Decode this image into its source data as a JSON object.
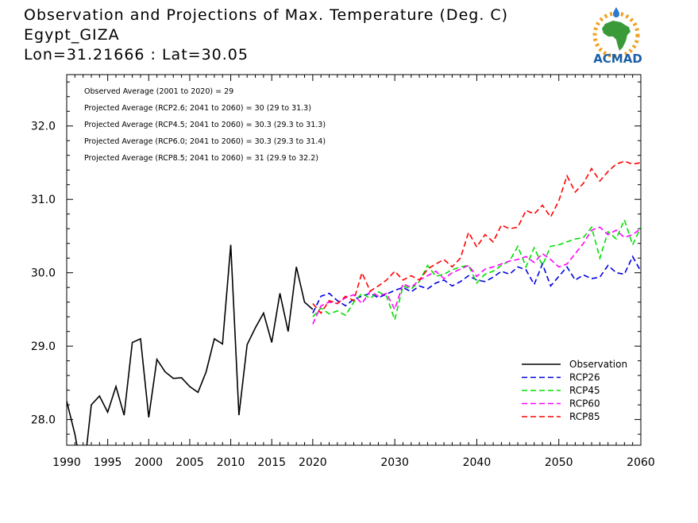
{
  "header": {
    "title": "Observation and Projections of Max. Temperature (Deg. C)",
    "location": "Egypt_GIZA",
    "coords": "Lon=31.21666 : Lat=30.05"
  },
  "logo": {
    "text": "ACMAD",
    "colors": {
      "text": "#1a5fa8",
      "africa": "#3a9a3a",
      "sun": "#f0a020",
      "drop": "#2a7ad0"
    }
  },
  "stats": [
    "Observed Average (2001 to 2020) = 29",
    "Projected Average (RCP2.6; 2041 to 2060) = 30 (29 to 31.3)",
    "Projected Average (RCP4.5; 2041 to 2060) = 30.3 (29.3 to 31.3)",
    "Projected Average (RCP6.0; 2041 to 2060) = 30.3 (29.3 to 31.4)",
    "Projected Average (RCP8.5; 2041 to 2060) = 31 (29.9 to 32.2)"
  ],
  "chart_data": {
    "type": "line",
    "xlim": [
      1990,
      2060
    ],
    "ylim": [
      27.65,
      32.7
    ],
    "xticks": [
      1990,
      1995,
      2000,
      2005,
      2010,
      2015,
      2020,
      2030,
      2040,
      2050,
      2060
    ],
    "yticks": [
      28.0,
      29.0,
      30.0,
      31.0,
      32.0
    ],
    "ytick_labels": [
      "28.0",
      "29.0",
      "30.0",
      "31.0",
      "32.0"
    ],
    "grid": false,
    "legend_position": "bottom-right",
    "series": [
      {
        "name": "Observation",
        "color": "#000000",
        "dashed": false,
        "x": [
          1990,
          1991,
          1992,
          1993,
          1994,
          1995,
          1996,
          1997,
          1998,
          1999,
          2000,
          2001,
          2002,
          2003,
          2004,
          2005,
          2006,
          2007,
          2008,
          2009,
          2010,
          2011,
          2012,
          2013,
          2014,
          2015,
          2016,
          2017,
          2018,
          2019,
          2020
        ],
        "y": [
          28.25,
          27.8,
          27.2,
          28.2,
          28.32,
          28.1,
          28.45,
          28.06,
          29.05,
          29.1,
          28.03,
          28.82,
          28.65,
          28.56,
          28.57,
          28.45,
          28.37,
          28.65,
          29.1,
          29.03,
          30.38,
          28.06,
          29.02,
          29.25,
          29.45,
          29.05,
          29.72,
          29.2,
          30.08,
          29.6,
          29.5
        ]
      },
      {
        "name": "RCP26",
        "color": "#0000e0",
        "dashed": true,
        "x": [
          2020,
          2021,
          2022,
          2023,
          2024,
          2025,
          2026,
          2027,
          2028,
          2029,
          2030,
          2031,
          2032,
          2033,
          2034,
          2035,
          2036,
          2037,
          2038,
          2039,
          2040,
          2041,
          2042,
          2043,
          2044,
          2045,
          2046,
          2047,
          2048,
          2049,
          2050,
          2051,
          2052,
          2053,
          2054,
          2055,
          2056,
          2057,
          2058,
          2059,
          2060
        ],
        "y": [
          29.45,
          29.68,
          29.72,
          29.62,
          29.55,
          29.64,
          29.68,
          29.72,
          29.66,
          29.71,
          29.76,
          29.8,
          29.74,
          29.82,
          29.78,
          29.86,
          29.9,
          29.82,
          29.88,
          29.96,
          29.9,
          29.88,
          29.94,
          30.02,
          29.98,
          30.08,
          30.04,
          29.84,
          30.12,
          29.82,
          29.95,
          30.08,
          29.9,
          29.97,
          29.92,
          29.94,
          30.1,
          30.0,
          29.98,
          30.22,
          30.02
        ]
      },
      {
        "name": "RCP45",
        "color": "#00e000",
        "dashed": true,
        "x": [
          2020,
          2021,
          2022,
          2023,
          2024,
          2025,
          2026,
          2027,
          2028,
          2029,
          2030,
          2031,
          2032,
          2033,
          2034,
          2035,
          2036,
          2037,
          2038,
          2039,
          2040,
          2041,
          2042,
          2043,
          2044,
          2045,
          2046,
          2047,
          2048,
          2049,
          2050,
          2051,
          2052,
          2053,
          2054,
          2055,
          2056,
          2057,
          2058,
          2059,
          2060
        ],
        "y": [
          29.4,
          29.52,
          29.44,
          29.48,
          29.42,
          29.6,
          29.72,
          29.65,
          29.74,
          29.68,
          29.36,
          29.82,
          29.78,
          29.88,
          30.1,
          29.95,
          29.98,
          30.04,
          30.08,
          30.1,
          29.86,
          29.98,
          30.02,
          30.1,
          30.16,
          30.36,
          30.08,
          30.34,
          30.1,
          30.36,
          30.38,
          30.42,
          30.46,
          30.48,
          30.62,
          30.2,
          30.56,
          30.46,
          30.72,
          30.38,
          30.62
        ]
      },
      {
        "name": "RCP60",
        "color": "#ff00ff",
        "dashed": true,
        "x": [
          2020,
          2021,
          2022,
          2023,
          2024,
          2025,
          2026,
          2027,
          2028,
          2029,
          2030,
          2031,
          2032,
          2033,
          2034,
          2035,
          2036,
          2037,
          2038,
          2039,
          2040,
          2041,
          2042,
          2043,
          2044,
          2045,
          2046,
          2047,
          2048,
          2049,
          2050,
          2051,
          2052,
          2053,
          2054,
          2055,
          2056,
          2057,
          2058,
          2059,
          2060
        ],
        "y": [
          29.3,
          29.55,
          29.6,
          29.58,
          29.66,
          29.7,
          29.58,
          29.75,
          29.68,
          29.72,
          29.5,
          29.85,
          29.8,
          29.9,
          29.96,
          30.02,
          29.92,
          30.0,
          30.05,
          30.1,
          29.95,
          30.05,
          30.08,
          30.12,
          30.16,
          30.18,
          30.22,
          30.14,
          30.26,
          30.18,
          30.08,
          30.12,
          30.26,
          30.4,
          30.58,
          30.62,
          30.52,
          30.58,
          30.48,
          30.52,
          30.6
        ]
      },
      {
        "name": "RCP85",
        "color": "#ff0000",
        "dashed": true,
        "x": [
          2020,
          2021,
          2022,
          2023,
          2024,
          2025,
          2026,
          2027,
          2028,
          2029,
          2030,
          2031,
          2032,
          2033,
          2034,
          2035,
          2036,
          2037,
          2038,
          2039,
          2040,
          2041,
          2042,
          2043,
          2044,
          2045,
          2046,
          2047,
          2048,
          2049,
          2050,
          2051,
          2052,
          2053,
          2054,
          2055,
          2056,
          2057,
          2058,
          2059,
          2060
        ],
        "y": [
          29.58,
          29.45,
          29.62,
          29.58,
          29.68,
          29.62,
          30.0,
          29.75,
          29.82,
          29.9,
          30.02,
          29.9,
          29.96,
          29.9,
          30.05,
          30.12,
          30.18,
          30.08,
          30.2,
          30.55,
          30.35,
          30.52,
          30.42,
          30.65,
          30.6,
          30.62,
          30.85,
          30.8,
          30.92,
          30.76,
          30.98,
          31.32,
          31.1,
          31.22,
          31.42,
          31.25,
          31.38,
          31.48,
          31.52,
          31.48,
          31.5
        ]
      }
    ]
  }
}
